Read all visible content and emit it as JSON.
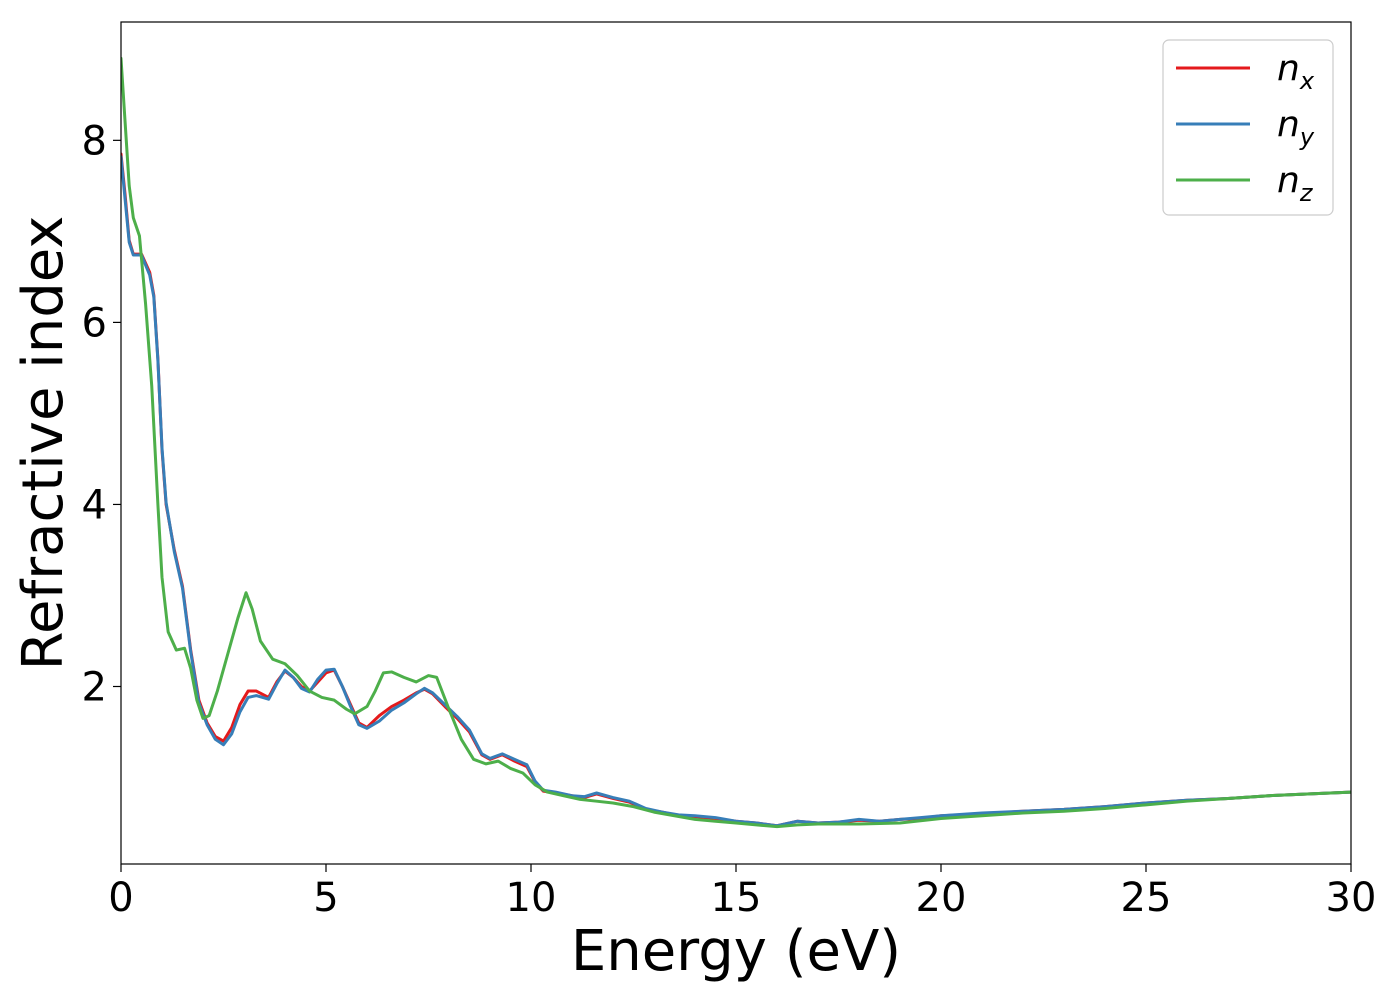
{
  "chart_data": {
    "type": "line",
    "xlabel": "Energy (eV)",
    "ylabel": "Refractive index",
    "xlim": [
      0,
      30
    ],
    "ylim": [
      0.05,
      9.3
    ],
    "xticks": [
      0,
      5,
      10,
      15,
      20,
      25,
      30
    ],
    "xtick_labels": [
      "0",
      "5",
      "10",
      "15",
      "20",
      "25",
      "30"
    ],
    "yticks": [
      2,
      4,
      6,
      8
    ],
    "ytick_labels": [
      "2",
      "4",
      "6",
      "8"
    ],
    "grid": false,
    "legend_position": "top-right",
    "series": [
      {
        "name": "n",
        "subscript": "x",
        "color": "#e41a1c",
        "points": [
          [
            0,
            7.85
          ],
          [
            0.1,
            7.4
          ],
          [
            0.2,
            6.9
          ],
          [
            0.3,
            6.75
          ],
          [
            0.5,
            6.75
          ],
          [
            0.7,
            6.55
          ],
          [
            0.8,
            6.3
          ],
          [
            0.9,
            5.6
          ],
          [
            1.0,
            4.6
          ],
          [
            1.1,
            4.0
          ],
          [
            1.3,
            3.5
          ],
          [
            1.5,
            3.1
          ],
          [
            1.7,
            2.4
          ],
          [
            1.9,
            1.85
          ],
          [
            2.1,
            1.6
          ],
          [
            2.3,
            1.45
          ],
          [
            2.5,
            1.4
          ],
          [
            2.7,
            1.55
          ],
          [
            2.9,
            1.8
          ],
          [
            3.1,
            1.95
          ],
          [
            3.3,
            1.95
          ],
          [
            3.6,
            1.88
          ],
          [
            3.8,
            2.05
          ],
          [
            4.0,
            2.17
          ],
          [
            4.2,
            2.1
          ],
          [
            4.4,
            2.0
          ],
          [
            4.6,
            1.95
          ],
          [
            4.8,
            2.05
          ],
          [
            5.0,
            2.15
          ],
          [
            5.2,
            2.18
          ],
          [
            5.4,
            2.0
          ],
          [
            5.6,
            1.8
          ],
          [
            5.8,
            1.6
          ],
          [
            6.0,
            1.55
          ],
          [
            6.3,
            1.68
          ],
          [
            6.6,
            1.78
          ],
          [
            6.9,
            1.85
          ],
          [
            7.2,
            1.93
          ],
          [
            7.4,
            1.97
          ],
          [
            7.6,
            1.92
          ],
          [
            7.9,
            1.78
          ],
          [
            8.2,
            1.65
          ],
          [
            8.5,
            1.5
          ],
          [
            8.8,
            1.25
          ],
          [
            9.0,
            1.2
          ],
          [
            9.3,
            1.25
          ],
          [
            9.6,
            1.18
          ],
          [
            9.9,
            1.12
          ],
          [
            10.1,
            0.95
          ],
          [
            10.3,
            0.85
          ],
          [
            10.6,
            0.83
          ],
          [
            11.0,
            0.8
          ],
          [
            11.3,
            0.78
          ],
          [
            11.6,
            0.82
          ],
          [
            12.0,
            0.77
          ],
          [
            12.4,
            0.73
          ],
          [
            12.8,
            0.65
          ],
          [
            13.2,
            0.62
          ],
          [
            13.6,
            0.58
          ],
          [
            14.0,
            0.57
          ],
          [
            14.5,
            0.55
          ],
          [
            15.0,
            0.52
          ],
          [
            15.5,
            0.5
          ],
          [
            16.0,
            0.47
          ],
          [
            16.5,
            0.52
          ],
          [
            17.0,
            0.5
          ],
          [
            17.5,
            0.51
          ],
          [
            18.0,
            0.53
          ],
          [
            18.5,
            0.52
          ],
          [
            19.0,
            0.54
          ],
          [
            19.5,
            0.55
          ],
          [
            20.0,
            0.58
          ],
          [
            21.0,
            0.6
          ],
          [
            22.0,
            0.63
          ],
          [
            23.0,
            0.65
          ],
          [
            24.0,
            0.68
          ],
          [
            25.0,
            0.72
          ],
          [
            26.0,
            0.75
          ],
          [
            27.0,
            0.77
          ],
          [
            28.0,
            0.8
          ],
          [
            29.0,
            0.82
          ],
          [
            30.0,
            0.84
          ]
        ]
      },
      {
        "name": "n",
        "subscript": "y",
        "color": "#377eb8",
        "points": [
          [
            0,
            7.82
          ],
          [
            0.1,
            7.35
          ],
          [
            0.2,
            6.88
          ],
          [
            0.3,
            6.74
          ],
          [
            0.5,
            6.74
          ],
          [
            0.7,
            6.52
          ],
          [
            0.8,
            6.28
          ],
          [
            0.9,
            5.58
          ],
          [
            1.0,
            4.62
          ],
          [
            1.1,
            4.02
          ],
          [
            1.3,
            3.48
          ],
          [
            1.5,
            3.08
          ],
          [
            1.7,
            2.38
          ],
          [
            1.9,
            1.82
          ],
          [
            2.1,
            1.58
          ],
          [
            2.3,
            1.42
          ],
          [
            2.5,
            1.36
          ],
          [
            2.7,
            1.48
          ],
          [
            2.9,
            1.72
          ],
          [
            3.1,
            1.88
          ],
          [
            3.3,
            1.9
          ],
          [
            3.6,
            1.86
          ],
          [
            3.8,
            2.03
          ],
          [
            4.0,
            2.18
          ],
          [
            4.2,
            2.1
          ],
          [
            4.4,
            1.98
          ],
          [
            4.6,
            1.94
          ],
          [
            4.8,
            2.08
          ],
          [
            5.0,
            2.18
          ],
          [
            5.2,
            2.19
          ],
          [
            5.4,
            2.0
          ],
          [
            5.6,
            1.78
          ],
          [
            5.8,
            1.58
          ],
          [
            6.0,
            1.54
          ],
          [
            6.3,
            1.62
          ],
          [
            6.6,
            1.74
          ],
          [
            6.9,
            1.82
          ],
          [
            7.2,
            1.92
          ],
          [
            7.4,
            1.98
          ],
          [
            7.6,
            1.93
          ],
          [
            7.9,
            1.8
          ],
          [
            8.2,
            1.67
          ],
          [
            8.5,
            1.52
          ],
          [
            8.8,
            1.26
          ],
          [
            9.0,
            1.21
          ],
          [
            9.3,
            1.26
          ],
          [
            9.6,
            1.2
          ],
          [
            9.9,
            1.14
          ],
          [
            10.1,
            0.96
          ],
          [
            10.3,
            0.86
          ],
          [
            10.6,
            0.84
          ],
          [
            11.0,
            0.8
          ],
          [
            11.3,
            0.79
          ],
          [
            11.6,
            0.83
          ],
          [
            12.0,
            0.78
          ],
          [
            12.4,
            0.74
          ],
          [
            12.8,
            0.66
          ],
          [
            13.2,
            0.62
          ],
          [
            13.6,
            0.59
          ],
          [
            14.0,
            0.58
          ],
          [
            14.5,
            0.56
          ],
          [
            15.0,
            0.52
          ],
          [
            15.5,
            0.5
          ],
          [
            16.0,
            0.47
          ],
          [
            16.5,
            0.52
          ],
          [
            17.0,
            0.5
          ],
          [
            17.5,
            0.51
          ],
          [
            18.0,
            0.54
          ],
          [
            18.5,
            0.52
          ],
          [
            19.0,
            0.54
          ],
          [
            19.5,
            0.56
          ],
          [
            20.0,
            0.58
          ],
          [
            21.0,
            0.61
          ],
          [
            22.0,
            0.63
          ],
          [
            23.0,
            0.65
          ],
          [
            24.0,
            0.68
          ],
          [
            25.0,
            0.72
          ],
          [
            26.0,
            0.75
          ],
          [
            27.0,
            0.77
          ],
          [
            28.0,
            0.8
          ],
          [
            29.0,
            0.82
          ],
          [
            30.0,
            0.84
          ]
        ]
      },
      {
        "name": "n",
        "subscript": "z",
        "color": "#4daf4a",
        "points": [
          [
            0,
            8.9
          ],
          [
            0.1,
            8.2
          ],
          [
            0.2,
            7.5
          ],
          [
            0.3,
            7.15
          ],
          [
            0.45,
            6.95
          ],
          [
            0.6,
            6.2
          ],
          [
            0.75,
            5.3
          ],
          [
            0.9,
            4.0
          ],
          [
            1.0,
            3.2
          ],
          [
            1.15,
            2.6
          ],
          [
            1.35,
            2.4
          ],
          [
            1.55,
            2.42
          ],
          [
            1.7,
            2.2
          ],
          [
            1.85,
            1.85
          ],
          [
            2.0,
            1.65
          ],
          [
            2.15,
            1.68
          ],
          [
            2.35,
            1.95
          ],
          [
            2.6,
            2.35
          ],
          [
            2.85,
            2.75
          ],
          [
            3.05,
            3.03
          ],
          [
            3.2,
            2.85
          ],
          [
            3.4,
            2.5
          ],
          [
            3.7,
            2.3
          ],
          [
            4.0,
            2.25
          ],
          [
            4.3,
            2.12
          ],
          [
            4.6,
            1.95
          ],
          [
            4.9,
            1.88
          ],
          [
            5.2,
            1.85
          ],
          [
            5.5,
            1.75
          ],
          [
            5.7,
            1.7
          ],
          [
            6.0,
            1.78
          ],
          [
            6.2,
            1.95
          ],
          [
            6.4,
            2.15
          ],
          [
            6.6,
            2.16
          ],
          [
            6.9,
            2.1
          ],
          [
            7.2,
            2.05
          ],
          [
            7.5,
            2.12
          ],
          [
            7.7,
            2.1
          ],
          [
            8.0,
            1.75
          ],
          [
            8.3,
            1.42
          ],
          [
            8.6,
            1.2
          ],
          [
            8.9,
            1.15
          ],
          [
            9.2,
            1.18
          ],
          [
            9.5,
            1.1
          ],
          [
            9.8,
            1.05
          ],
          [
            10.1,
            0.92
          ],
          [
            10.4,
            0.84
          ],
          [
            10.8,
            0.8
          ],
          [
            11.2,
            0.76
          ],
          [
            11.6,
            0.74
          ],
          [
            12.0,
            0.72
          ],
          [
            12.5,
            0.68
          ],
          [
            13.0,
            0.62
          ],
          [
            13.5,
            0.58
          ],
          [
            14.0,
            0.54
          ],
          [
            14.5,
            0.52
          ],
          [
            15.0,
            0.5
          ],
          [
            15.5,
            0.48
          ],
          [
            16.0,
            0.46
          ],
          [
            16.5,
            0.48
          ],
          [
            17.0,
            0.49
          ],
          [
            18.0,
            0.49
          ],
          [
            19.0,
            0.5
          ],
          [
            20.0,
            0.55
          ],
          [
            21.0,
            0.58
          ],
          [
            22.0,
            0.61
          ],
          [
            23.0,
            0.63
          ],
          [
            24.0,
            0.66
          ],
          [
            25.0,
            0.7
          ],
          [
            26.0,
            0.74
          ],
          [
            27.0,
            0.77
          ],
          [
            28.0,
            0.8
          ],
          [
            29.0,
            0.82
          ],
          [
            30.0,
            0.84
          ]
        ]
      }
    ]
  }
}
